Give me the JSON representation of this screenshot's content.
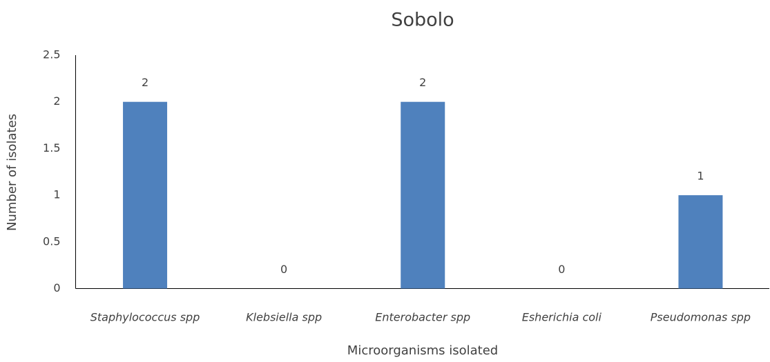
{
  "chart_data": {
    "type": "bar",
    "title": "Sobolo",
    "x_label": "Microorganisms isolated",
    "y_label": "Number of isolates",
    "categories": [
      "Staphylococcus spp",
      "Klebsiella spp",
      "Enterobacter spp",
      "Esherichia coli",
      "Pseudomonas spp"
    ],
    "values": [
      2,
      0,
      2,
      0,
      1
    ],
    "color": "#4f81bd",
    "ylim": [
      0,
      2.5
    ],
    "yticks": [
      0,
      0.5,
      1,
      1.5,
      2,
      2.5
    ],
    "grid": false
  }
}
